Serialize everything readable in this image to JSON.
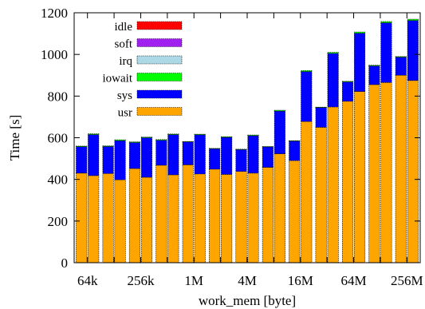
{
  "chart_data": {
    "type": "bar",
    "stacked": true,
    "title": "",
    "xlabel": "work_mem [byte]",
    "ylabel": "Time [s]",
    "ylim": [
      0,
      1200
    ],
    "yticks": [
      0,
      200,
      400,
      600,
      800,
      1000,
      1200
    ],
    "xtick_labels": [
      "64k",
      "256k",
      "1M",
      "4M",
      "16M",
      "64M",
      "256M"
    ],
    "grid": false,
    "legend_position": "top-left",
    "series": [
      {
        "name": "idle",
        "color": "#ff0000"
      },
      {
        "name": "soft",
        "color": "#a020f0"
      },
      {
        "name": "irq",
        "color": "#add8e6"
      },
      {
        "name": "iowait",
        "color": "#00ff00"
      },
      {
        "name": "sys",
        "color": "#0000ff"
      },
      {
        "name": "usr",
        "color": "#ffa500"
      }
    ],
    "groups": [
      {
        "usr": [
          430,
          418
        ],
        "sys": [
          127,
          197
        ],
        "iowait": [
          3,
          4
        ],
        "irq": [
          0,
          0
        ],
        "soft": [
          0,
          0
        ],
        "idle": [
          0,
          0
        ]
      },
      {
        "usr": [
          428,
          398
        ],
        "sys": [
          130,
          188
        ],
        "iowait": [
          3,
          4
        ],
        "irq": [
          0,
          0
        ],
        "soft": [
          0,
          0
        ],
        "idle": [
          0,
          0
        ]
      },
      {
        "usr": [
          452,
          410
        ],
        "sys": [
          125,
          190
        ],
        "iowait": [
          3,
          3
        ],
        "irq": [
          0,
          0
        ],
        "soft": [
          0,
          0
        ],
        "idle": [
          0,
          0
        ]
      },
      {
        "usr": [
          468,
          422
        ],
        "sys": [
          120,
          193
        ],
        "iowait": [
          3,
          3
        ],
        "irq": [
          0,
          0
        ],
        "soft": [
          0,
          0
        ],
        "idle": [
          0,
          0
        ]
      },
      {
        "usr": [
          470,
          426
        ],
        "sys": [
          110,
          188
        ],
        "iowait": [
          2,
          3
        ],
        "irq": [
          0,
          0
        ],
        "soft": [
          0,
          0
        ],
        "idle": [
          0,
          0
        ]
      },
      {
        "usr": [
          449,
          424
        ],
        "sys": [
          98,
          178
        ],
        "iowait": [
          2,
          3
        ],
        "irq": [
          0,
          0
        ],
        "soft": [
          0,
          0
        ],
        "idle": [
          0,
          0
        ]
      },
      {
        "usr": [
          438,
          430
        ],
        "sys": [
          105,
          180
        ],
        "iowait": [
          2,
          3
        ],
        "irq": [
          0,
          0
        ],
        "soft": [
          0,
          0
        ],
        "idle": [
          0,
          0
        ]
      },
      {
        "usr": [
          458,
          523
        ],
        "sys": [
          98,
          205
        ],
        "iowait": [
          2,
          4
        ],
        "irq": [
          0,
          0
        ],
        "soft": [
          0,
          0
        ],
        "idle": [
          0,
          0
        ]
      },
      {
        "usr": [
          490,
          678
        ],
        "sys": [
          94,
          240
        ],
        "iowait": [
          2,
          5
        ],
        "irq": [
          0,
          0
        ],
        "soft": [
          0,
          0
        ],
        "idle": [
          0,
          0
        ]
      },
      {
        "usr": [
          650,
          748
        ],
        "sys": [
          95,
          257
        ],
        "iowait": [
          2,
          5
        ],
        "irq": [
          0,
          0
        ],
        "soft": [
          0,
          0
        ],
        "idle": [
          0,
          0
        ]
      },
      {
        "usr": [
          775,
          822
        ],
        "sys": [
          93,
          280
        ],
        "iowait": [
          3,
          6
        ],
        "irq": [
          0,
          0
        ],
        "soft": [
          0,
          0
        ],
        "idle": [
          0,
          0
        ]
      },
      {
        "usr": [
          855,
          865
        ],
        "sys": [
          90,
          287
        ],
        "iowait": [
          3,
          6
        ],
        "irq": [
          0,
          0
        ],
        "soft": [
          0,
          0
        ],
        "idle": [
          0,
          0
        ]
      },
      {
        "usr": [
          900,
          875
        ],
        "sys": [
          87,
          288
        ],
        "iowait": [
          3,
          6
        ],
        "irq": [
          0,
          0
        ],
        "soft": [
          0,
          0
        ],
        "idle": [
          0,
          0
        ]
      }
    ]
  }
}
